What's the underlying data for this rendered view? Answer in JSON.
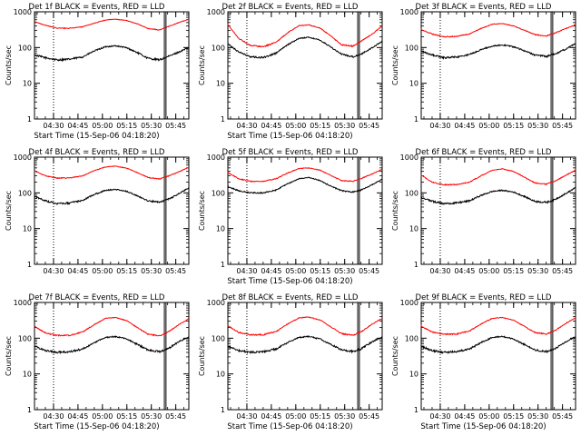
{
  "chart_data": [
    {
      "type": "line",
      "title": "Det 1f BLACK = Events, RED = LLD",
      "xlabel": "Start Time (15-Sep-06 04:18:20)",
      "ylabel": "Counts/sec",
      "yscale": "log",
      "ylim": [
        1,
        1000
      ],
      "yticks": [
        1,
        10,
        100,
        1000
      ],
      "xticks": [
        "04:30",
        "04:45",
        "05:00",
        "05:15",
        "05:30",
        "05:45"
      ],
      "xlim": [
        "04:18:20",
        "05:53:00"
      ],
      "markers": [
        {
          "time": "04:30",
          "style": "dotted"
        },
        {
          "time": "05:38",
          "style": "solid"
        },
        {
          "time": "05:39",
          "style": "solid"
        }
      ],
      "series": [
        {
          "name": "Events",
          "color": "#000000",
          "x": [
            "04:18",
            "04:25",
            "04:32",
            "04:40",
            "04:48",
            "04:55",
            "05:02",
            "05:08",
            "05:15",
            "05:22",
            "05:28",
            "05:35",
            "05:40",
            "05:47",
            "05:53"
          ],
          "y": [
            62,
            52,
            45,
            47,
            55,
            80,
            105,
            112,
            98,
            70,
            50,
            45,
            55,
            75,
            100
          ]
        },
        {
          "name": "LLD",
          "color": "#ff0000",
          "x": [
            "04:18",
            "04:25",
            "04:32",
            "04:40",
            "04:48",
            "04:55",
            "05:02",
            "05:08",
            "05:15",
            "05:22",
            "05:28",
            "05:35",
            "05:40",
            "05:47",
            "05:53"
          ],
          "y": [
            540,
            420,
            350,
            345,
            380,
            480,
            590,
            620,
            570,
            450,
            340,
            310,
            380,
            500,
            620
          ]
        }
      ]
    },
    {
      "type": "line",
      "title": "Det 2f BLACK = Events, RED = LLD",
      "xlabel": "Start Time (15-Sep-06 04:18:20)",
      "ylabel": "Counts/sec",
      "yscale": "log",
      "ylim": [
        1,
        1000
      ],
      "yticks": [
        1,
        10,
        100,
        1000
      ],
      "xticks": [
        "04:30",
        "04:45",
        "05:00",
        "05:15",
        "05:30",
        "05:45"
      ],
      "xlim": [
        "04:18:20",
        "05:53:00"
      ],
      "markers": [
        {
          "time": "04:30",
          "style": "dotted"
        },
        {
          "time": "05:38",
          "style": "solid"
        },
        {
          "time": "05:39",
          "style": "solid"
        }
      ],
      "series": [
        {
          "name": "Events",
          "color": "#000000",
          "x": [
            "04:18",
            "04:25",
            "04:32",
            "04:40",
            "04:48",
            "04:55",
            "05:02",
            "05:08",
            "05:15",
            "05:22",
            "05:28",
            "05:35",
            "05:40",
            "05:47",
            "05:53"
          ],
          "y": [
            130,
            75,
            55,
            52,
            70,
            120,
            180,
            195,
            160,
            100,
            65,
            55,
            65,
            100,
            150
          ]
        },
        {
          "name": "LLD",
          "color": "#ff0000",
          "x": [
            "04:18",
            "04:25",
            "04:32",
            "04:40",
            "04:48",
            "04:55",
            "05:02",
            "05:08",
            "05:15",
            "05:22",
            "05:28",
            "05:35",
            "05:40",
            "05:47",
            "05:53"
          ],
          "y": [
            460,
            180,
            115,
            105,
            140,
            260,
            410,
            430,
            350,
            200,
            120,
            110,
            150,
            240,
            400
          ]
        }
      ]
    },
    {
      "type": "line",
      "title": "Det 3f BLACK = Events, RED = LLD",
      "xlabel": "",
      "ylabel": "Counts/sec",
      "yscale": "log",
      "ylim": [
        1,
        1000
      ],
      "yticks": [
        1,
        10,
        100,
        1000
      ],
      "xticks": [
        "04:30",
        "04:45",
        "05:00",
        "05:15",
        "05:30",
        "05:45"
      ],
      "xlim": [
        "04:18:20",
        "05:53:00"
      ],
      "markers": [
        {
          "time": "04:30",
          "style": "dotted"
        },
        {
          "time": "05:38",
          "style": "solid"
        },
        {
          "time": "05:39",
          "style": "solid"
        }
      ],
      "series": [
        {
          "name": "Events",
          "color": "#000000",
          "x": [
            "04:18",
            "04:25",
            "04:32",
            "04:40",
            "04:48",
            "04:55",
            "05:02",
            "05:08",
            "05:15",
            "05:22",
            "05:28",
            "05:35",
            "05:40",
            "05:47",
            "05:53"
          ],
          "y": [
            80,
            62,
            52,
            54,
            64,
            88,
            110,
            118,
            105,
            80,
            62,
            56,
            66,
            90,
            130
          ]
        },
        {
          "name": "LLD",
          "color": "#ff0000",
          "x": [
            "04:18",
            "04:25",
            "04:32",
            "04:40",
            "04:48",
            "04:55",
            "05:02",
            "05:08",
            "05:15",
            "05:22",
            "05:28",
            "05:35",
            "05:40",
            "05:47",
            "05:53"
          ],
          "y": [
            320,
            240,
            200,
            205,
            240,
            340,
            450,
            470,
            400,
            300,
            230,
            210,
            250,
            340,
            430
          ]
        }
      ]
    },
    {
      "type": "line",
      "title": "Det 4f BLACK = Events, RED = LLD",
      "xlabel": "",
      "ylabel": "Counts/sec",
      "yscale": "log",
      "ylim": [
        1,
        1000
      ],
      "yticks": [
        1,
        10,
        100,
        1000
      ],
      "xticks": [
        "04:30",
        "04:45",
        "05:00",
        "05:15",
        "05:30",
        "05:45"
      ],
      "xlim": [
        "04:18:20",
        "05:53:00"
      ],
      "markers": [
        {
          "time": "04:30",
          "style": "dotted"
        },
        {
          "time": "05:38",
          "style": "solid"
        },
        {
          "time": "05:39",
          "style": "solid"
        }
      ],
      "series": [
        {
          "name": "Events",
          "color": "#000000",
          "x": [
            "04:18",
            "04:25",
            "04:32",
            "04:40",
            "04:48",
            "04:55",
            "05:02",
            "05:08",
            "05:15",
            "05:22",
            "05:28",
            "05:35",
            "05:40",
            "05:47",
            "05:53"
          ],
          "y": [
            80,
            60,
            50,
            52,
            62,
            90,
            118,
            125,
            110,
            80,
            60,
            55,
            65,
            95,
            140
          ]
        },
        {
          "name": "LLD",
          "color": "#ff0000",
          "x": [
            "04:18",
            "04:25",
            "04:32",
            "04:40",
            "04:48",
            "04:55",
            "05:02",
            "05:08",
            "05:15",
            "05:22",
            "05:28",
            "05:35",
            "05:40",
            "05:47",
            "05:53"
          ],
          "y": [
            420,
            300,
            260,
            262,
            300,
            420,
            530,
            560,
            490,
            360,
            270,
            245,
            290,
            390,
            520
          ]
        }
      ]
    },
    {
      "type": "line",
      "title": "Det 5f BLACK = Events, RED = LLD",
      "xlabel": "Start Time (15-Sep-06 04:18:20)",
      "ylabel": "Counts/sec",
      "yscale": "log",
      "ylim": [
        1,
        1000
      ],
      "yticks": [
        1,
        10,
        100,
        1000
      ],
      "xticks": [
        "04:30",
        "04:45",
        "05:00",
        "05:15",
        "05:30",
        "05:45"
      ],
      "xlim": [
        "04:18:20",
        "05:53:00"
      ],
      "markers": [
        {
          "time": "04:30",
          "style": "dotted"
        },
        {
          "time": "05:38",
          "style": "solid"
        },
        {
          "time": "05:39",
          "style": "solid"
        }
      ],
      "series": [
        {
          "name": "Events",
          "color": "#000000",
          "x": [
            "04:18",
            "04:25",
            "04:32",
            "04:40",
            "04:48",
            "04:55",
            "05:02",
            "05:08",
            "05:15",
            "05:22",
            "05:28",
            "05:35",
            "05:40",
            "05:47",
            "05:53"
          ],
          "y": [
            150,
            115,
            100,
            100,
            120,
            180,
            250,
            270,
            220,
            150,
            115,
            105,
            120,
            170,
            240
          ]
        },
        {
          "name": "LLD",
          "color": "#ff0000",
          "x": [
            "04:18",
            "04:25",
            "04:32",
            "04:40",
            "04:48",
            "04:55",
            "05:02",
            "05:08",
            "05:15",
            "05:22",
            "05:28",
            "05:35",
            "05:40",
            "05:47",
            "05:53"
          ],
          "y": [
            380,
            250,
            210,
            210,
            250,
            360,
            480,
            500,
            430,
            300,
            220,
            210,
            250,
            340,
            460
          ]
        }
      ]
    },
    {
      "type": "line",
      "title": "Det 6f BLACK = Events, RED = LLD",
      "xlabel": "",
      "ylabel": "Counts/sec",
      "yscale": "log",
      "ylim": [
        1,
        1000
      ],
      "yticks": [
        1,
        10,
        100,
        1000
      ],
      "xticks": [
        "04:30",
        "04:45",
        "05:00",
        "05:15",
        "05:30",
        "05:45"
      ],
      "xlim": [
        "04:18:20",
        "05:53:00"
      ],
      "markers": [
        {
          "time": "04:30",
          "style": "dotted"
        },
        {
          "time": "05:38",
          "style": "solid"
        },
        {
          "time": "05:39",
          "style": "solid"
        }
      ],
      "series": [
        {
          "name": "Events",
          "color": "#000000",
          "x": [
            "04:18",
            "04:25",
            "04:32",
            "04:40",
            "04:48",
            "04:55",
            "05:02",
            "05:08",
            "05:15",
            "05:22",
            "05:28",
            "05:35",
            "05:40",
            "05:47",
            "05:53"
          ],
          "y": [
            75,
            58,
            50,
            52,
            60,
            85,
            110,
            118,
            105,
            78,
            58,
            54,
            64,
            95,
            140
          ]
        },
        {
          "name": "LLD",
          "color": "#ff0000",
          "x": [
            "04:18",
            "04:25",
            "04:32",
            "04:40",
            "04:48",
            "04:55",
            "05:02",
            "05:08",
            "05:15",
            "05:22",
            "05:28",
            "05:35",
            "05:40",
            "05:47",
            "05:53"
          ],
          "y": [
            320,
            200,
            170,
            170,
            200,
            300,
            430,
            470,
            400,
            270,
            190,
            175,
            210,
            310,
            430
          ]
        }
      ]
    },
    {
      "type": "line",
      "title": "Det 7f BLACK = Events, RED = LLD",
      "xlabel": "Start Time (15-Sep-06 04:18:20)",
      "ylabel": "Counts/sec",
      "yscale": "log",
      "ylim": [
        1,
        1000
      ],
      "yticks": [
        1,
        10,
        100,
        1000
      ],
      "xticks": [
        "04:30",
        "04:45",
        "05:00",
        "05:15",
        "05:30",
        "05:45"
      ],
      "xlim": [
        "04:18:20",
        "05:53:00"
      ],
      "markers": [
        {
          "time": "04:30",
          "style": "dotted"
        },
        {
          "time": "05:38",
          "style": "solid"
        },
        {
          "time": "05:39",
          "style": "solid"
        }
      ],
      "series": [
        {
          "name": "Events",
          "color": "#000000",
          "x": [
            "04:18",
            "04:25",
            "04:32",
            "04:40",
            "04:48",
            "04:55",
            "05:02",
            "05:08",
            "05:15",
            "05:22",
            "05:28",
            "05:35",
            "05:40",
            "05:47",
            "05:53"
          ],
          "y": [
            60,
            45,
            40,
            42,
            50,
            75,
            105,
            112,
            95,
            65,
            47,
            42,
            50,
            80,
            110
          ]
        },
        {
          "name": "LLD",
          "color": "#ff0000",
          "x": [
            "04:18",
            "04:25",
            "04:32",
            "04:40",
            "04:48",
            "04:55",
            "05:02",
            "05:08",
            "05:15",
            "05:22",
            "05:28",
            "05:35",
            "05:40",
            "05:47",
            "05:53"
          ],
          "y": [
            220,
            140,
            120,
            120,
            150,
            240,
            360,
            380,
            310,
            190,
            130,
            115,
            145,
            240,
            350
          ]
        }
      ]
    },
    {
      "type": "line",
      "title": "Det 8f BLACK = Events, RED = LLD",
      "xlabel": "Start Time (15-Sep-06 04:18:20)",
      "ylabel": "Counts/sec",
      "yscale": "log",
      "ylim": [
        1,
        1000
      ],
      "yticks": [
        1,
        10,
        100,
        1000
      ],
      "xticks": [
        "04:30",
        "04:45",
        "05:00",
        "05:15",
        "05:30",
        "05:45"
      ],
      "xlim": [
        "04:18:20",
        "05:53:00"
      ],
      "markers": [
        {
          "time": "04:30",
          "style": "dotted"
        },
        {
          "time": "05:38",
          "style": "solid"
        },
        {
          "time": "05:39",
          "style": "solid"
        }
      ],
      "series": [
        {
          "name": "Events",
          "color": "#000000",
          "x": [
            "04:18",
            "04:25",
            "04:32",
            "04:40",
            "04:48",
            "04:55",
            "05:02",
            "05:08",
            "05:15",
            "05:22",
            "05:28",
            "05:35",
            "05:40",
            "05:47",
            "05:53"
          ],
          "y": [
            60,
            45,
            40,
            42,
            50,
            75,
            105,
            112,
            95,
            65,
            47,
            42,
            50,
            80,
            110
          ]
        },
        {
          "name": "LLD",
          "color": "#ff0000",
          "x": [
            "04:18",
            "04:25",
            "04:32",
            "04:40",
            "04:48",
            "04:55",
            "05:02",
            "05:08",
            "05:15",
            "05:22",
            "05:28",
            "05:35",
            "05:40",
            "05:47",
            "05:53"
          ],
          "y": [
            230,
            145,
            125,
            125,
            155,
            250,
            370,
            390,
            320,
            200,
            135,
            120,
            150,
            250,
            360
          ]
        }
      ]
    },
    {
      "type": "line",
      "title": "Det 9f BLACK = Events, RED = LLD",
      "xlabel": "Start Time (15-Sep-06 04:18:20)",
      "ylabel": "Counts/sec",
      "yscale": "log",
      "ylim": [
        1,
        1000
      ],
      "yticks": [
        1,
        10,
        100,
        1000
      ],
      "xticks": [
        "04:30",
        "04:45",
        "05:00",
        "05:15",
        "05:30",
        "05:45"
      ],
      "xlim": [
        "04:18:20",
        "05:53:00"
      ],
      "markers": [
        {
          "time": "04:30",
          "style": "dotted"
        },
        {
          "time": "05:38",
          "style": "solid"
        },
        {
          "time": "05:39",
          "style": "solid"
        }
      ],
      "series": [
        {
          "name": "Events",
          "color": "#000000",
          "x": [
            "04:18",
            "04:25",
            "04:32",
            "04:40",
            "04:48",
            "04:55",
            "05:02",
            "05:08",
            "05:15",
            "05:22",
            "05:28",
            "05:35",
            "05:40",
            "05:47",
            "05:53"
          ],
          "y": [
            60,
            45,
            40,
            42,
            50,
            75,
            105,
            112,
            95,
            65,
            47,
            42,
            50,
            80,
            110
          ]
        },
        {
          "name": "LLD",
          "color": "#ff0000",
          "x": [
            "04:18",
            "04:25",
            "04:32",
            "04:40",
            "04:48",
            "04:55",
            "05:02",
            "05:08",
            "05:15",
            "05:22",
            "05:28",
            "05:35",
            "05:40",
            "05:47",
            "05:53"
          ],
          "y": [
            220,
            150,
            130,
            130,
            160,
            250,
            360,
            380,
            320,
            210,
            145,
            130,
            160,
            260,
            370
          ]
        }
      ]
    }
  ]
}
